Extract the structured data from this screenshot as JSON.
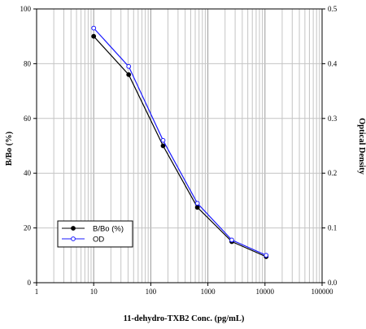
{
  "chart_data": {
    "type": "line",
    "x_scale": "log",
    "xlim": [
      1,
      100000
    ],
    "ylim": [
      0,
      100
    ],
    "y2lim": [
      0,
      0.5
    ],
    "xlabel": "11-dehydro-TXB2 Conc. (pg/mL)",
    "ylabel": "B/Bo (%)",
    "y2label": "Optical Density",
    "x_ticks": [
      "1",
      "10",
      "100",
      "1000",
      "10000",
      "100000"
    ],
    "y_ticks": [
      "0",
      "20",
      "40",
      "60",
      "80",
      "100"
    ],
    "y2_ticks": [
      "0.0",
      "0.1",
      "0.2",
      "0.3",
      "0.4",
      "0.5"
    ],
    "grid": true,
    "legend_position": "bottom-left",
    "x": [
      10,
      41,
      164,
      655,
      2620,
      10480
    ],
    "series": [
      {
        "name": "B/Bo (%)",
        "axis": "left",
        "color": "#000000",
        "marker": "filled-circle",
        "values": [
          90,
          76,
          50,
          27.5,
          15,
          9.5
        ]
      },
      {
        "name": "OD",
        "axis": "right",
        "color": "#1a1aff",
        "marker": "open-circle",
        "values": [
          0.465,
          0.395,
          0.26,
          0.145,
          0.078,
          0.05
        ]
      }
    ]
  }
}
